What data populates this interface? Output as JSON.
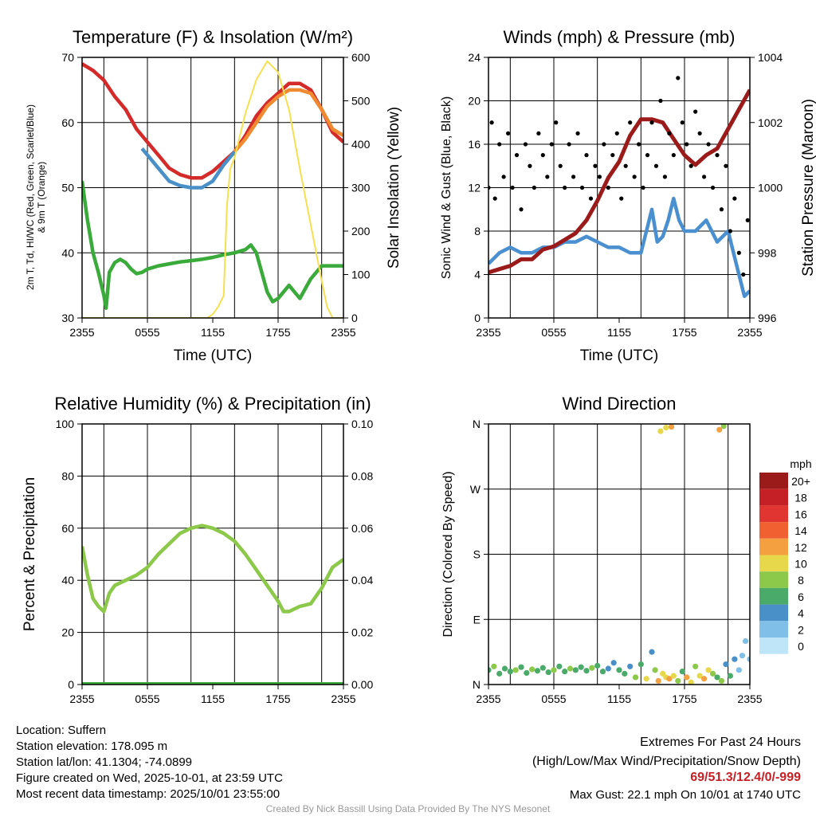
{
  "chart_data": [
    {
      "type": "line",
      "title": "Temperature (F) & Insolation (W/m²)",
      "xlabel": "Time (UTC)",
      "ylabel": "2m T, Td, HI/WC (Red, Green, Scarlet/Blue)",
      "ylabel2": "& 9m T (Orange)",
      "ylabel_right": "Solar Insolation (Yellow)",
      "xticks": [
        "2355",
        "0555",
        "1155",
        "1755",
        "2355"
      ],
      "ylim": [
        30,
        70
      ],
      "yticks": [
        30,
        40,
        50,
        60,
        70
      ],
      "ylim_right": [
        0,
        700
      ],
      "yticks_right": [
        0,
        100,
        200,
        300,
        400,
        500,
        600
      ],
      "series": [
        {
          "name": "2m T",
          "axis": "left",
          "color": "#d42a2a",
          "x": [
            0,
            1,
            2,
            3,
            4,
            5,
            6,
            7,
            8,
            9,
            10,
            11,
            12,
            13,
            14,
            15,
            16,
            17,
            18,
            19,
            20,
            21,
            22,
            23,
            24
          ],
          "y": [
            69,
            68,
            66.5,
            64,
            62,
            59,
            57,
            55,
            53,
            52,
            51.5,
            51.5,
            52.5,
            54,
            55.5,
            58,
            61,
            63,
            64.5,
            66,
            66,
            65,
            62,
            58.5,
            57
          ]
        },
        {
          "name": "HI/WC",
          "axis": "left",
          "color": "#4a90c8",
          "x": [
            5.5,
            6,
            7,
            8,
            9,
            10,
            11,
            12,
            13,
            14
          ],
          "y": [
            56,
            55,
            53,
            51,
            50.3,
            50,
            50,
            51,
            53.5,
            55.5
          ]
        },
        {
          "name": "9m T",
          "axis": "left",
          "color": "#f08a30",
          "x": [
            14,
            15,
            16,
            17,
            18,
            19,
            20,
            21,
            22,
            23,
            24
          ],
          "y": [
            55.5,
            57.5,
            60,
            62.5,
            64,
            65,
            65,
            64.5,
            62,
            59,
            58
          ]
        },
        {
          "name": "Td",
          "axis": "left",
          "color": "#3aaa3a",
          "x": [
            0,
            0.5,
            1,
            1.5,
            2,
            2.2,
            2.5,
            3,
            3.5,
            4,
            4.5,
            5,
            5.5,
            6,
            7,
            8,
            9,
            10,
            11,
            12,
            13,
            14,
            15,
            15.5,
            16,
            16.5,
            17,
            17.5,
            18,
            19,
            20,
            21,
            22,
            23,
            24
          ],
          "y": [
            51,
            45,
            40,
            37,
            33.5,
            31.5,
            37,
            38.5,
            39,
            38.5,
            37.5,
            36.8,
            37,
            37.5,
            38,
            38.3,
            38.6,
            38.8,
            39,
            39.3,
            39.7,
            40,
            40.5,
            41.2,
            40,
            37,
            34,
            32.5,
            33,
            35,
            33,
            36,
            38,
            38,
            38
          ]
        },
        {
          "name": "Solar",
          "axis": "right",
          "color": "#f5e050",
          "x": [
            0,
            11.5,
            12,
            12.5,
            13,
            13.3,
            13.6,
            14,
            15,
            16,
            17,
            18,
            19,
            20,
            21,
            22,
            22.5,
            23,
            24
          ],
          "y": [
            0,
            0,
            10,
            30,
            60,
            300,
            400,
            430,
            550,
            640,
            690,
            660,
            560,
            400,
            250,
            100,
            30,
            0,
            0
          ]
        }
      ]
    },
    {
      "type": "scatter",
      "title": "Winds (mph) & Pressure (mb)",
      "xlabel": "Time (UTC)",
      "ylabel": "Sonic Wind & Gust (Blue, Black)",
      "ylabel_right": "Station Pressure (Maroon)",
      "xticks": [
        "2355",
        "0555",
        "1155",
        "1755",
        "2355"
      ],
      "ylim": [
        0,
        24
      ],
      "yticks": [
        0,
        4,
        8,
        12,
        16,
        20,
        24
      ],
      "ylim_right": [
        996,
        1004
      ],
      "yticks_right": [
        996,
        998,
        1000,
        1002,
        1004
      ],
      "series": [
        {
          "name": "Wind",
          "axis": "left",
          "kind": "line",
          "color": "#4a90d0",
          "x": [
            0,
            1,
            2,
            3,
            4,
            5,
            6,
            7,
            8,
            9,
            10,
            11,
            12,
            13,
            14,
            14.5,
            15,
            15.5,
            16,
            16.5,
            17,
            17.5,
            18,
            19,
            20,
            21,
            22,
            22.5,
            23,
            23.5,
            24
          ],
          "y": [
            5,
            6,
            6.5,
            6,
            6,
            6.5,
            6.5,
            7,
            7,
            7.5,
            7,
            6.5,
            6.5,
            6,
            6,
            8,
            10,
            7,
            7.5,
            9,
            11,
            9,
            8,
            8,
            9,
            7,
            8,
            6,
            4,
            2,
            2.5
          ]
        },
        {
          "name": "Pressure",
          "axis": "right",
          "kind": "line",
          "color": "#9b1a1a",
          "x": [
            0,
            1,
            2,
            3,
            4,
            5,
            6,
            7,
            8,
            9,
            10,
            11,
            12,
            13,
            14,
            15,
            16,
            17,
            18,
            19,
            20,
            21,
            22,
            23,
            24
          ],
          "y": [
            997.4,
            997.5,
            997.6,
            997.8,
            997.8,
            998.1,
            998.2,
            998.4,
            998.6,
            999,
            999.6,
            1000.3,
            1000.8,
            1001.6,
            1002.1,
            1002.1,
            1002,
            1001.5,
            1001,
            1000.7,
            1001,
            1001.2,
            1001.8,
            1002.4,
            1003
          ]
        },
        {
          "name": "Gust",
          "axis": "left",
          "kind": "points",
          "color": "#000000",
          "x": [
            0,
            0.3,
            0.6,
            1,
            1.4,
            1.8,
            2.2,
            2.6,
            3,
            3.4,
            3.8,
            4.2,
            4.6,
            5,
            5.4,
            5.8,
            6.2,
            6.6,
            7,
            7.4,
            7.8,
            8.2,
            8.6,
            9,
            9.4,
            9.8,
            10.2,
            10.6,
            11,
            11.4,
            11.8,
            12.2,
            12.6,
            13,
            13.4,
            13.8,
            14.2,
            14.6,
            15,
            15.4,
            15.8,
            16.2,
            16.6,
            17,
            17.4,
            17.8,
            18.2,
            18.6,
            19,
            19.4,
            19.8,
            20.2,
            20.6,
            21,
            21.4,
            21.8,
            22.2,
            22.6,
            23,
            23.4,
            23.8
          ],
          "y": [
            12,
            18,
            11,
            16,
            13,
            17,
            12,
            15,
            10,
            16,
            14,
            12,
            17,
            15,
            13,
            16,
            18,
            14,
            12,
            16,
            13,
            17,
            12,
            15,
            11,
            14,
            13,
            16,
            12,
            15,
            17,
            11,
            14,
            18,
            13,
            16,
            12,
            15,
            18,
            14,
            20,
            13,
            17,
            15,
            22.1,
            18,
            16,
            14,
            19,
            17,
            13,
            16,
            12,
            15,
            10,
            14,
            8,
            11,
            6,
            4,
            9
          ]
        }
      ]
    },
    {
      "type": "line",
      "title": "Relative Humidity (%) & Precipitation (in)",
      "ylabel": "Percent & Precipitation",
      "xticks": [
        "2355",
        "0555",
        "1155",
        "1755",
        "2355"
      ],
      "ylim": [
        0,
        100
      ],
      "yticks": [
        0,
        20,
        40,
        60,
        80,
        100
      ],
      "ylim_right": [
        0,
        0.1
      ],
      "yticks_right": [
        "0.00",
        "0.02",
        "0.04",
        "0.06",
        "0.08",
        "0.10"
      ],
      "series": [
        {
          "name": "RH",
          "axis": "left",
          "color": "#8cc84a",
          "x": [
            0,
            0.5,
            1,
            1.5,
            2,
            2.5,
            3,
            4,
            5,
            6,
            7,
            8,
            9,
            10,
            11,
            12,
            13,
            14,
            15,
            16,
            17,
            18,
            18.5,
            19,
            20,
            21,
            22,
            23,
            24
          ],
          "y": [
            53,
            42,
            33,
            30,
            28,
            35,
            38,
            40,
            42,
            45,
            50,
            54,
            58,
            60,
            61,
            60,
            58,
            55,
            50,
            44,
            38,
            32,
            28,
            28,
            30,
            31,
            37,
            45,
            48
          ]
        },
        {
          "name": "Precipitation",
          "axis": "right",
          "color": "#3aaa3a",
          "x": [
            0,
            24
          ],
          "y": [
            0,
            0
          ]
        }
      ]
    },
    {
      "type": "scatter",
      "title": "Wind Direction",
      "ylabel": "Direction (Colored By Speed)",
      "xticks": [
        "2355",
        "0555",
        "1155",
        "1755",
        "2355"
      ],
      "ylim": [
        0,
        360
      ],
      "yticks": [
        "N",
        "E",
        "S",
        "W",
        "N"
      ],
      "legend": {
        "title": "mph",
        "labels": [
          "20+",
          "18",
          "16",
          "14",
          "12",
          "10",
          "8",
          "6",
          "4",
          "2",
          "0"
        ],
        "colors": [
          "#9b1a1a",
          "#c42026",
          "#e03530",
          "#f06030",
          "#f5a040",
          "#e6d84a",
          "#8cc84a",
          "#4aaa6a",
          "#4a90c8",
          "#80bfe8",
          "#bfe6f8"
        ]
      },
      "points": {
        "x": [
          0,
          0.5,
          1,
          1.5,
          2,
          2.5,
          3,
          3.5,
          4,
          4.5,
          5,
          5.5,
          6,
          6.5,
          7,
          7.5,
          8,
          8.5,
          9,
          9.5,
          10,
          10.5,
          11,
          11.5,
          12,
          12.5,
          13,
          13.5,
          14,
          14.5,
          15,
          15.3,
          15.6,
          16,
          16.3,
          16.6,
          17,
          17.4,
          17.8,
          18.2,
          18.6,
          19,
          19.4,
          19.8,
          20.2,
          20.6,
          21,
          21.4,
          21.8,
          22.2,
          22.6,
          23,
          23.3,
          23.6,
          24,
          15.8,
          16.3,
          16.8,
          21.2,
          21.6
        ],
        "dir": [
          20,
          25,
          15,
          22,
          18,
          20,
          24,
          16,
          21,
          19,
          23,
          17,
          20,
          25,
          18,
          22,
          20,
          24,
          19,
          23,
          26,
          18,
          22,
          30,
          20,
          15,
          25,
          10,
          28,
          8,
          45,
          20,
          5,
          15,
          10,
          8,
          12,
          5,
          18,
          10,
          3,
          25,
          12,
          8,
          20,
          15,
          10,
          5,
          28,
          12,
          35,
          20,
          40,
          60,
          35,
          350,
          355,
          356,
          352,
          357
        ],
        "speed": [
          6,
          7,
          6,
          5,
          6,
          7,
          6,
          6,
          7,
          6,
          5,
          6,
          7,
          6,
          6,
          7,
          6,
          5,
          6,
          7,
          6,
          5,
          4,
          3,
          5,
          6,
          4,
          8,
          6,
          10,
          3,
          8,
          12,
          10,
          9,
          11,
          10,
          8,
          6,
          12,
          10,
          7,
          9,
          11,
          10,
          8,
          6,
          7,
          4,
          5,
          3,
          2,
          1,
          1,
          2,
          10,
          10,
          11,
          12,
          8
        ]
      }
    }
  ],
  "footer": {
    "left": [
      "Location: Suffern",
      "Station elevation: 178.095 m",
      "Station lat/lon: 41.1304; -74.0899",
      "Figure created on Wed, 2025-10-01, at 23:59 UTC",
      "Most recent data timestamp: 2025/10/01 23:55:00"
    ],
    "right_title": "Extremes For Past 24 Hours",
    "right_subtitle": "(High/Low/Max Wind/Precipitation/Snow Depth)",
    "extremes": "69/51.3/12.4/0/-999",
    "extremes_color": "#c42026",
    "max_gust": "Max Gust: 22.1 mph On 10/01 at 1740 UTC",
    "credit": "Created By Nick Bassill Using Data Provided By The NYS Mesonet"
  }
}
